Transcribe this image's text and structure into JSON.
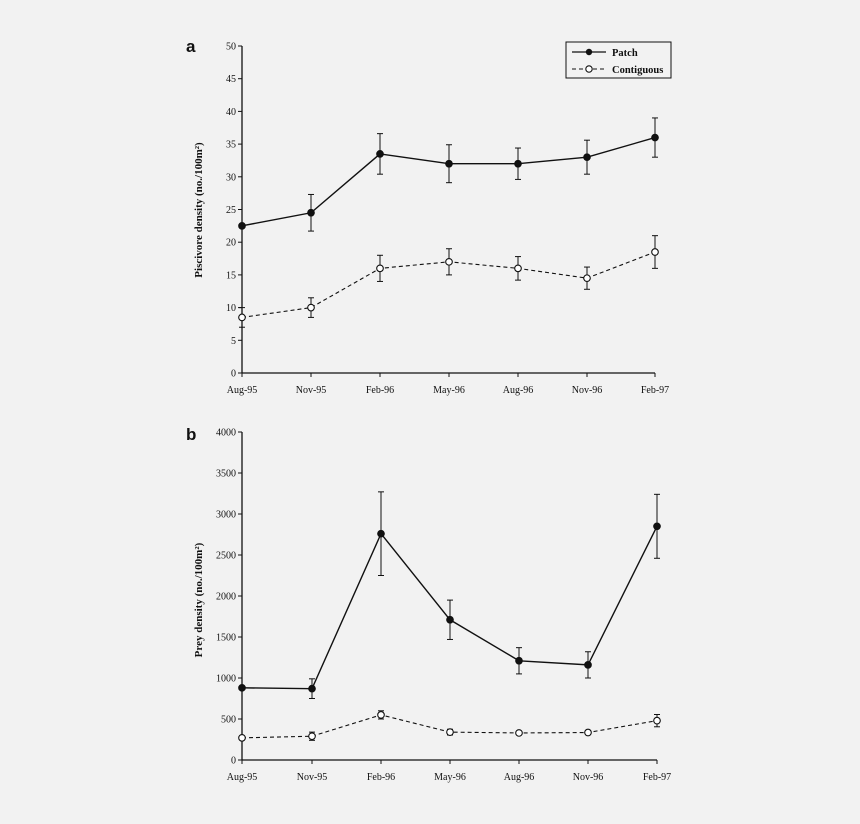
{
  "colors": {
    "background": "#f2f2f2",
    "ink": "#111111",
    "open_marker_fill": "#ffffff"
  },
  "chart_data": [
    {
      "panel": "a",
      "type": "line",
      "ylabel": "Piscivore density (no./100m²)",
      "xlabel": "",
      "ylim": [
        0,
        50
      ],
      "yticks": [
        0,
        5,
        10,
        15,
        20,
        25,
        30,
        35,
        40,
        45,
        50
      ],
      "categories": [
        "Aug-95",
        "Nov-95",
        "Feb-96",
        "May-96",
        "Aug-96",
        "Nov-96",
        "Feb-97"
      ],
      "legend_position": "top-right",
      "series": [
        {
          "name": "Patch",
          "style": "solid",
          "marker": "filled-circle",
          "values": [
            22.5,
            24.5,
            33.5,
            32,
            32,
            33,
            36
          ],
          "errors": [
            0,
            2.8,
            3.1,
            2.9,
            2.4,
            2.6,
            3.0
          ]
        },
        {
          "name": "Contiguous",
          "style": "dashed",
          "marker": "open-circle",
          "values": [
            8.5,
            10,
            16,
            17,
            16,
            14.5,
            18.5
          ],
          "errors": [
            1.5,
            1.5,
            2.0,
            2.0,
            1.8,
            1.7,
            2.5
          ]
        }
      ]
    },
    {
      "panel": "b",
      "type": "line",
      "ylabel": "Prey density (no./100m²)",
      "xlabel": "",
      "ylim": [
        0,
        4000
      ],
      "yticks": [
        0,
        500,
        1000,
        1500,
        2000,
        2500,
        3000,
        3500,
        4000
      ],
      "categories": [
        "Aug-95",
        "Nov-95",
        "Feb-96",
        "May-96",
        "Aug-96",
        "Nov-96",
        "Feb-97"
      ],
      "series": [
        {
          "name": "Patch",
          "style": "solid",
          "marker": "filled-circle",
          "values": [
            880,
            870,
            2760,
            1710,
            1210,
            1160,
            2850
          ],
          "errors": [
            0,
            120,
            510,
            240,
            160,
            160,
            390
          ]
        },
        {
          "name": "Contiguous",
          "style": "dashed",
          "marker": "open-circle",
          "values": [
            270,
            290,
            550,
            340,
            330,
            335,
            480
          ],
          "errors": [
            0,
            50,
            50,
            35,
            0,
            25,
            75
          ]
        }
      ]
    }
  ]
}
